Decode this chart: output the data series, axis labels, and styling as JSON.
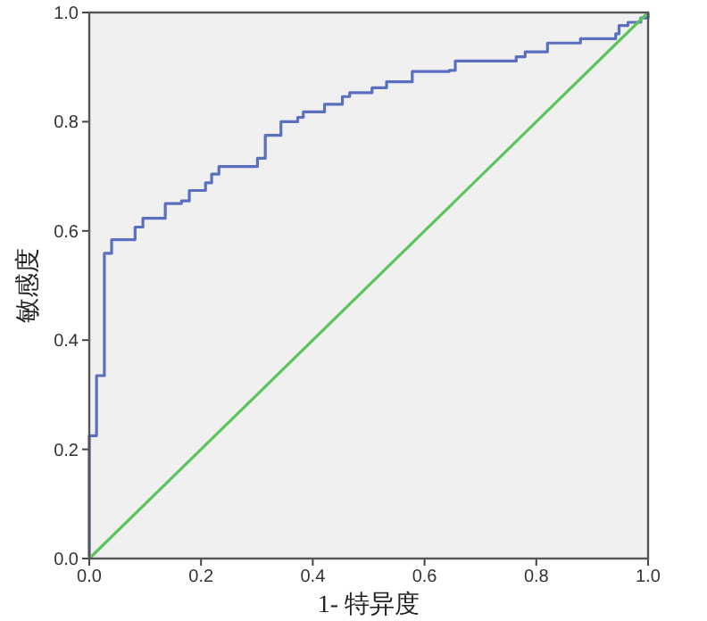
{
  "chart_data": {
    "type": "step",
    "xlabel": "1- 特异度",
    "ylabel": "敏感度",
    "xlim": [
      0,
      1
    ],
    "ylim": [
      0,
      1
    ],
    "xticks": [
      {
        "value": 0,
        "label": "0.0"
      },
      {
        "value": 0.2,
        "label": "0.2"
      },
      {
        "value": 0.4,
        "label": "0.4"
      },
      {
        "value": 0.6,
        "label": "0.6"
      },
      {
        "value": 0.8,
        "label": "0.8"
      },
      {
        "value": 1,
        "label": "1.0"
      }
    ],
    "yticks": [
      {
        "value": 0,
        "label": "0.0"
      },
      {
        "value": 0.2,
        "label": "0.2"
      },
      {
        "value": 0.4,
        "label": "0.4"
      },
      {
        "value": 0.6,
        "label": "0.6"
      },
      {
        "value": 0.8,
        "label": "0.8"
      },
      {
        "value": 1,
        "label": "1.0"
      }
    ],
    "grid": false,
    "series": [
      {
        "color": "#5a6fbf",
        "x": [
          0,
          0,
          0.013,
          0.027,
          0.04,
          0.082,
          0.096,
          0.136,
          0.165,
          0.179,
          0.208,
          0.219,
          0.232,
          0.301,
          0.315,
          0.343,
          0.373,
          0.383,
          0.421,
          0.453,
          0.466,
          0.506,
          0.532,
          0.578,
          0.644,
          0.655,
          0.764,
          0.78,
          0.82,
          0.879,
          0.942,
          0.948,
          0.964,
          0.987,
          1
        ],
        "values": [
          0,
          0.225,
          0.335,
          0.559,
          0.584,
          0.607,
          0.623,
          0.65,
          0.655,
          0.674,
          0.688,
          0.704,
          0.718,
          0.733,
          0.775,
          0.8,
          0.808,
          0.818,
          0.832,
          0.846,
          0.853,
          0.862,
          0.873,
          0.892,
          0.894,
          0.911,
          0.919,
          0.928,
          0.944,
          0.952,
          0.961,
          0.976,
          0.982,
          0.99,
          1
        ]
      },
      {
        "type": "line",
        "color": "#5cc45c",
        "x": [
          0,
          1
        ],
        "values": [
          0,
          1
        ]
      }
    ]
  }
}
